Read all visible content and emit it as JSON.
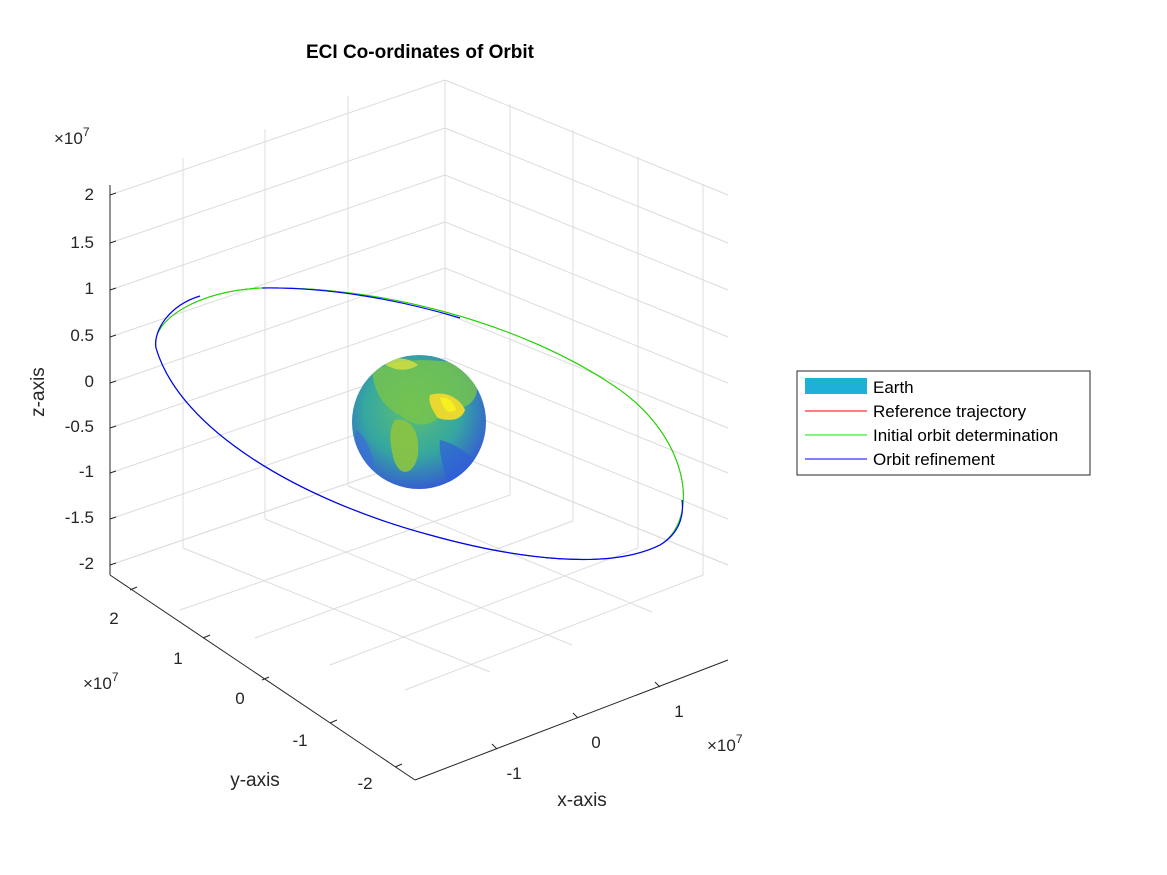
{
  "chart_data": {
    "type": "3d-line",
    "title": "ECI Co-ordinates of Orbit",
    "xlabel": "x-axis",
    "ylabel": "y-axis",
    "zlabel": "z-axis",
    "exponent_base": "×10",
    "exponent": "7",
    "x_ticks": [
      "-1",
      "0",
      "1"
    ],
    "y_ticks": [
      "-2",
      "-1",
      "0",
      "1",
      "2"
    ],
    "z_ticks": [
      "-2",
      "-1.5",
      "-1",
      "-0.5",
      "0",
      "0.5",
      "1",
      "1.5",
      "2"
    ],
    "grid": true,
    "legend_position": "outside-right",
    "legend": [
      {
        "label": "Earth",
        "color": "#1fb0d8",
        "kind": "patch"
      },
      {
        "label": "Reference trajectory",
        "color": "#ff0000",
        "kind": "line"
      },
      {
        "label": "Initial orbit determination",
        "color": "#00ff00",
        "kind": "line"
      },
      {
        "label": "Orbit refinement",
        "color": "#0000ff",
        "kind": "line"
      }
    ],
    "earth_radius": 6378137,
    "orbit": {
      "shape": "ellipse",
      "center": [
        0,
        0,
        -2000000.0
      ],
      "extreme_points": [
        [
          -21000000.0,
          7000000.0,
          9000000.0
        ],
        [
          20000000.0,
          -10000000.0,
          -16000000.0
        ]
      ]
    }
  }
}
